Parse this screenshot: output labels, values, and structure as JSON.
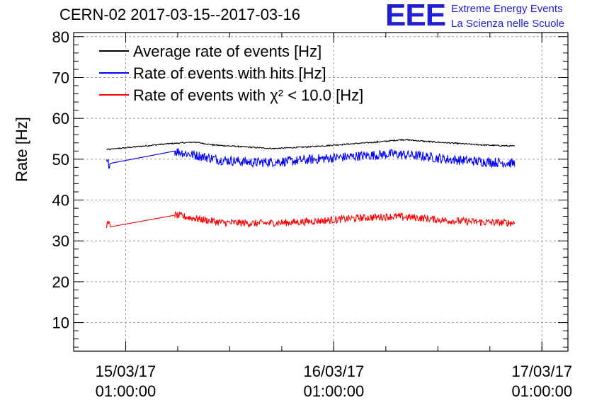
{
  "header": {
    "title": "CERN-02 2017-03-15--2017-03-16",
    "logo_text": "EEE",
    "logo_line1": "Extreme Energy Events",
    "logo_line2": "La Scienza nelle Scuole"
  },
  "colors": {
    "average": "#000000",
    "hits": "#0000ff",
    "chi2": "#ff0000",
    "grid": "#9a9a9a",
    "logo": "#1f1fd8"
  },
  "chart_data": {
    "type": "line",
    "title": "CERN-02 2017-03-15--2017-03-16",
    "ylabel": "Rate [Hz]",
    "xlabel": "",
    "ylim": [
      3,
      81
    ],
    "xlim": [
      "2017-03-14 19:00",
      "2017-03-17 04:00"
    ],
    "grid": true,
    "legend_position": "top-left",
    "yticks": [
      10,
      20,
      30,
      40,
      50,
      60,
      70,
      80
    ],
    "xticks": [
      {
        "t": "2017-03-15 01:00",
        "line1": "15/03/17",
        "line2": "01:00:00"
      },
      {
        "t": "2017-03-16 01:00",
        "line1": "16/03/17",
        "line2": "01:00:00"
      },
      {
        "t": "2017-03-17 01:00",
        "line1": "17/03/17",
        "line2": "01:00:00"
      }
    ],
    "series": [
      {
        "name": "Average rate of events [Hz]",
        "color": "#000000",
        "noise": 0.15,
        "points": [
          [
            "2017-03-14 22:48",
            52.4
          ],
          [
            "2017-03-14 23:15",
            52.4
          ],
          [
            "2017-03-15 00:00",
            52.6
          ],
          [
            "2017-03-15 06:00",
            53.8
          ],
          [
            "2017-03-15 09:00",
            54.2
          ],
          [
            "2017-03-15 11:00",
            53.5
          ],
          [
            "2017-03-15 14:00",
            53.1
          ],
          [
            "2017-03-15 18:00",
            52.6
          ],
          [
            "2017-03-15 22:00",
            53.0
          ],
          [
            "2017-03-16 02:00",
            53.6
          ],
          [
            "2017-03-16 06:00",
            54.2
          ],
          [
            "2017-03-16 09:00",
            54.8
          ],
          [
            "2017-03-16 12:00",
            54.3
          ],
          [
            "2017-03-16 15:00",
            53.9
          ],
          [
            "2017-03-16 18:00",
            53.5
          ],
          [
            "2017-03-16 21:52",
            53.2
          ]
        ]
      },
      {
        "name": "Rate of events with hits [Hz]",
        "color": "#0000ff",
        "noise": 1.2,
        "points": [
          [
            "2017-03-14 22:48",
            49.0
          ],
          [
            "2017-03-14 23:15",
            49.0
          ],
          [
            "2017-03-15 06:40",
            52.0
          ],
          [
            "2017-03-15 09:00",
            51.0
          ],
          [
            "2017-03-15 12:00",
            49.8
          ],
          [
            "2017-03-15 16:00",
            49.2
          ],
          [
            "2017-03-15 20:00",
            49.5
          ],
          [
            "2017-03-16 00:00",
            50.2
          ],
          [
            "2017-03-16 04:00",
            50.8
          ],
          [
            "2017-03-16 08:00",
            51.3
          ],
          [
            "2017-03-16 11:00",
            50.8
          ],
          [
            "2017-03-16 14:00",
            50.0
          ],
          [
            "2017-03-16 18:00",
            49.4
          ],
          [
            "2017-03-16 21:52",
            49.0
          ]
        ]
      },
      {
        "name": "Rate of events with χ² < 10.0 [Hz]",
        "color": "#ff0000",
        "noise": 0.9,
        "points": [
          [
            "2017-03-14 22:48",
            34.0
          ],
          [
            "2017-03-14 23:15",
            34.0
          ],
          [
            "2017-03-15 06:40",
            36.3
          ],
          [
            "2017-03-15 09:00",
            35.5
          ],
          [
            "2017-03-15 12:00",
            34.5
          ],
          [
            "2017-03-15 16:00",
            34.3
          ],
          [
            "2017-03-15 20:00",
            34.5
          ],
          [
            "2017-03-16 00:00",
            35.0
          ],
          [
            "2017-03-16 04:00",
            35.6
          ],
          [
            "2017-03-16 08:00",
            36.0
          ],
          [
            "2017-03-16 11:00",
            35.6
          ],
          [
            "2017-03-16 14:00",
            35.0
          ],
          [
            "2017-03-16 18:00",
            34.6
          ],
          [
            "2017-03-16 21:52",
            34.4
          ]
        ]
      }
    ]
  }
}
